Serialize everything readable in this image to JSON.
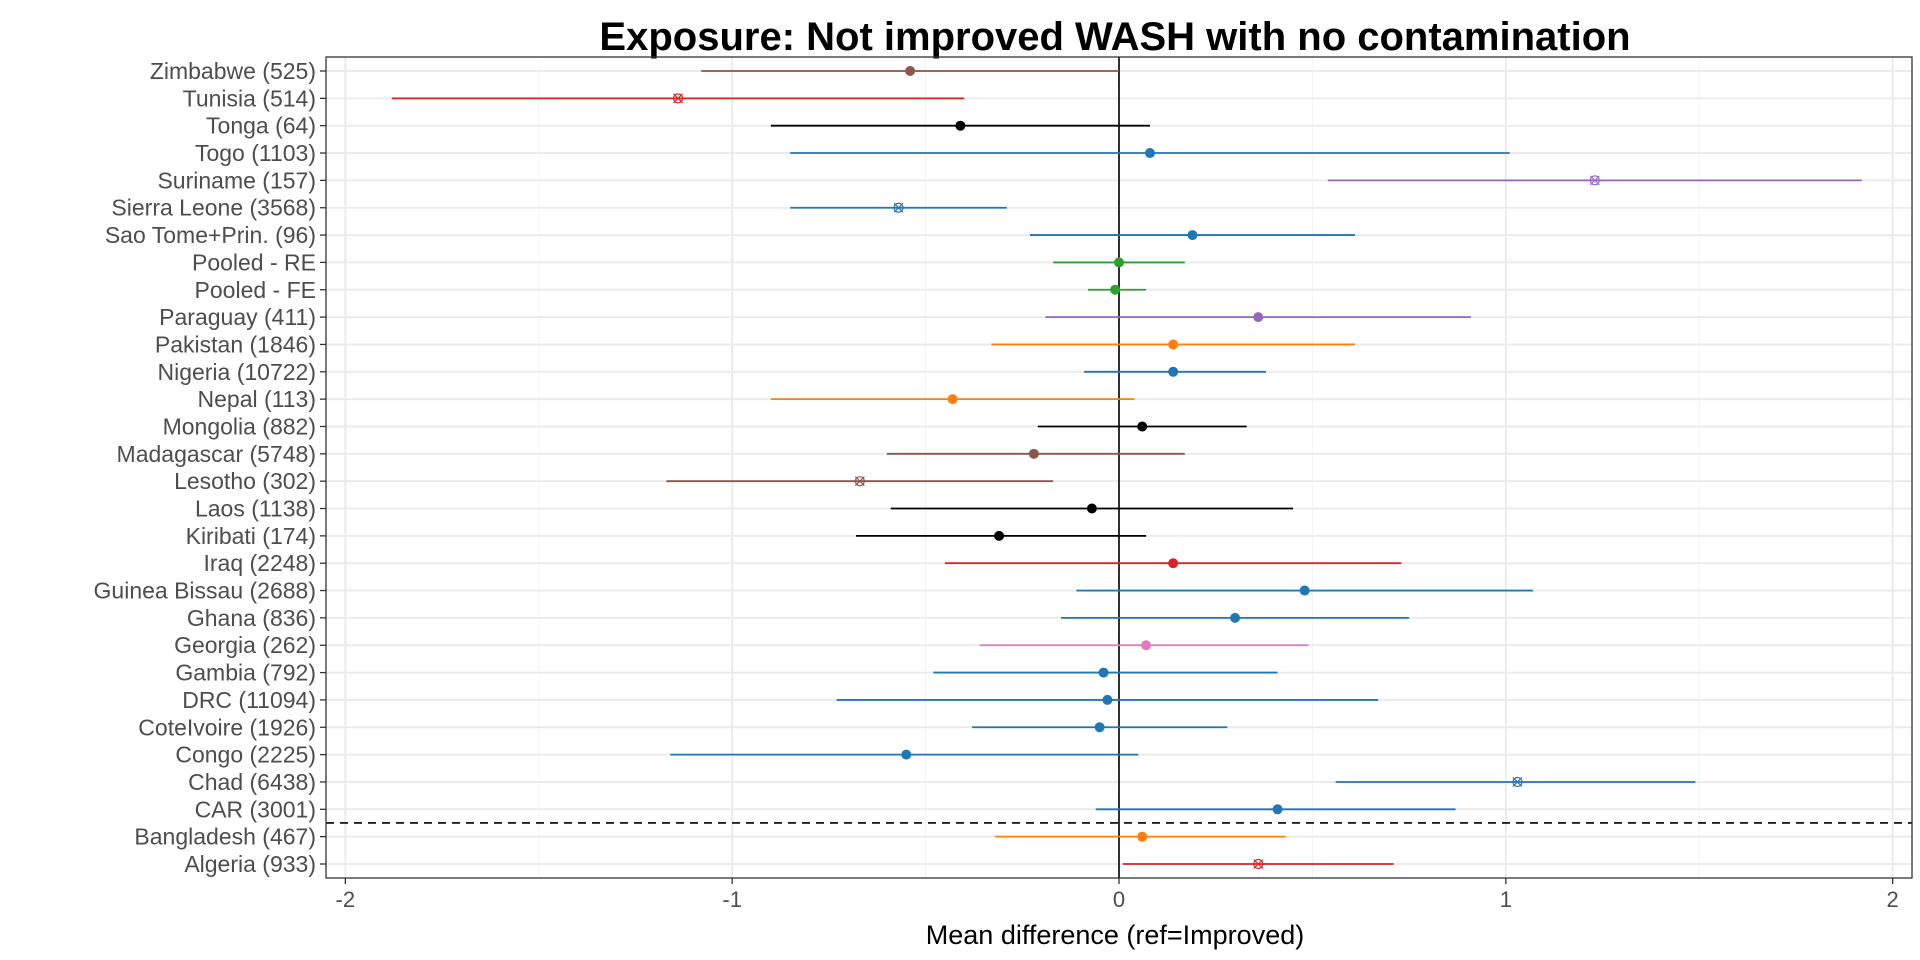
{
  "chart_data": {
    "type": "forest",
    "title": "Exposure: Not improved WASH with no contamination",
    "xlabel": "Mean difference (ref=Improved)",
    "xlim": [
      -2.05,
      2.05
    ],
    "x_ticks": [
      -2,
      -1,
      0,
      1,
      2
    ],
    "x_tick_labels": [
      "-2",
      "-1",
      "0",
      "1",
      "2"
    ],
    "reference_line_x": 0,
    "separator_between": [
      "CAR (3001)",
      "Bangladesh (467)"
    ],
    "grid": true,
    "marker_legend": {
      "dot": "point estimate",
      "x": "point estimate (cross marker)"
    },
    "rows": [
      {
        "label": "Zimbabwe (525)",
        "estimate": -0.54,
        "lower": -1.08,
        "upper": 0.0,
        "color": "#8c564b",
        "marker": "dot"
      },
      {
        "label": "Tunisia (514)",
        "estimate": -1.14,
        "lower": -1.88,
        "upper": -0.4,
        "color": "#d62728",
        "marker": "x"
      },
      {
        "label": "Tonga (64)",
        "estimate": -0.41,
        "lower": -0.9,
        "upper": 0.08,
        "color": "#000000",
        "marker": "dot"
      },
      {
        "label": "Togo (1103)",
        "estimate": 0.08,
        "lower": -0.85,
        "upper": 1.01,
        "color": "#1f77b4",
        "marker": "dot"
      },
      {
        "label": "Suriname (157)",
        "estimate": 1.23,
        "lower": 0.54,
        "upper": 1.92,
        "color": "#9467bd",
        "marker": "x"
      },
      {
        "label": "Sierra Leone (3568)",
        "estimate": -0.57,
        "lower": -0.85,
        "upper": -0.29,
        "color": "#1f77b4",
        "marker": "x"
      },
      {
        "label": "Sao Tome+Prin. (96)",
        "estimate": 0.19,
        "lower": -0.23,
        "upper": 0.61,
        "color": "#1f77b4",
        "marker": "dot"
      },
      {
        "label": "Pooled - RE",
        "estimate": 0.0,
        "lower": -0.17,
        "upper": 0.17,
        "color": "#2ca02c",
        "marker": "dot"
      },
      {
        "label": "Pooled - FE",
        "estimate": -0.01,
        "lower": -0.08,
        "upper": 0.07,
        "color": "#2ca02c",
        "marker": "dot"
      },
      {
        "label": "Paraguay (411)",
        "estimate": 0.36,
        "lower": -0.19,
        "upper": 0.91,
        "color": "#9467bd",
        "marker": "dot"
      },
      {
        "label": "Pakistan (1846)",
        "estimate": 0.14,
        "lower": -0.33,
        "upper": 0.61,
        "color": "#ff7f0e",
        "marker": "dot"
      },
      {
        "label": "Nigeria (10722)",
        "estimate": 0.14,
        "lower": -0.09,
        "upper": 0.38,
        "color": "#1f77b4",
        "marker": "dot"
      },
      {
        "label": "Nepal (113)",
        "estimate": -0.43,
        "lower": -0.9,
        "upper": 0.04,
        "color": "#ff7f0e",
        "marker": "dot"
      },
      {
        "label": "Mongolia (882)",
        "estimate": 0.06,
        "lower": -0.21,
        "upper": 0.33,
        "color": "#000000",
        "marker": "dot"
      },
      {
        "label": "Madagascar (5748)",
        "estimate": -0.22,
        "lower": -0.6,
        "upper": 0.17,
        "color": "#8c564b",
        "marker": "dot"
      },
      {
        "label": "Lesotho (302)",
        "estimate": -0.67,
        "lower": -1.17,
        "upper": -0.17,
        "color": "#8c564b",
        "marker": "x"
      },
      {
        "label": "Laos (1138)",
        "estimate": -0.07,
        "lower": -0.59,
        "upper": 0.45,
        "color": "#000000",
        "marker": "dot"
      },
      {
        "label": "Kiribati (174)",
        "estimate": -0.31,
        "lower": -0.68,
        "upper": 0.07,
        "color": "#000000",
        "marker": "dot"
      },
      {
        "label": "Iraq (2248)",
        "estimate": 0.14,
        "lower": -0.45,
        "upper": 0.73,
        "color": "#d62728",
        "marker": "dot"
      },
      {
        "label": "Guinea Bissau (2688)",
        "estimate": 0.48,
        "lower": -0.11,
        "upper": 1.07,
        "color": "#1f77b4",
        "marker": "dot"
      },
      {
        "label": "Ghana (836)",
        "estimate": 0.3,
        "lower": -0.15,
        "upper": 0.75,
        "color": "#1f77b4",
        "marker": "dot"
      },
      {
        "label": "Georgia (262)",
        "estimate": 0.07,
        "lower": -0.36,
        "upper": 0.49,
        "color": "#e377c2",
        "marker": "dot"
      },
      {
        "label": "Gambia (792)",
        "estimate": -0.04,
        "lower": -0.48,
        "upper": 0.41,
        "color": "#1f77b4",
        "marker": "dot"
      },
      {
        "label": "DRC (11094)",
        "estimate": -0.03,
        "lower": -0.73,
        "upper": 0.67,
        "color": "#1f77b4",
        "marker": "dot"
      },
      {
        "label": "CoteIvoire (1926)",
        "estimate": -0.05,
        "lower": -0.38,
        "upper": 0.28,
        "color": "#1f77b4",
        "marker": "dot"
      },
      {
        "label": "Congo (2225)",
        "estimate": -0.55,
        "lower": -1.16,
        "upper": 0.05,
        "color": "#1f77b4",
        "marker": "dot"
      },
      {
        "label": "Chad (6438)",
        "estimate": 1.03,
        "lower": 0.56,
        "upper": 1.49,
        "color": "#1f77b4",
        "marker": "x"
      },
      {
        "label": "CAR (3001)",
        "estimate": 0.41,
        "lower": -0.06,
        "upper": 0.87,
        "color": "#1f77b4",
        "marker": "dot"
      },
      {
        "label": "Bangladesh (467)",
        "estimate": 0.06,
        "lower": -0.32,
        "upper": 0.43,
        "color": "#ff7f0e",
        "marker": "dot"
      },
      {
        "label": "Algeria (933)",
        "estimate": 0.36,
        "lower": 0.01,
        "upper": 0.71,
        "color": "#d62728",
        "marker": "x"
      }
    ]
  }
}
